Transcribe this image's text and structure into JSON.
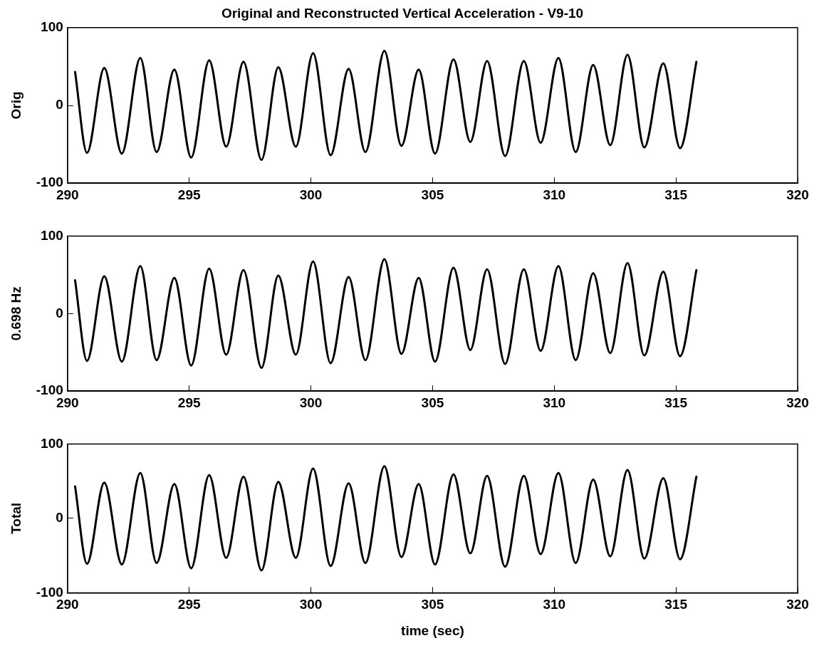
{
  "chart_data": [
    {
      "type": "line",
      "title": "Original and Reconstructed Vertical Acceleration - V9-10",
      "ylabel": "Orig",
      "xlim": [
        290,
        320
      ],
      "xticks": [
        290,
        295,
        300,
        305,
        310,
        315,
        320
      ],
      "ylim": [
        -100,
        100
      ],
      "yticks": [
        -100,
        0,
        100
      ],
      "grid": false,
      "legend": false,
      "marker": "none",
      "line_style": "solid",
      "series": [
        {
          "color": "#000000",
          "x": [
            290.31,
            290.8,
            291.51,
            292.23,
            292.99,
            293.66,
            294.39,
            295.08,
            295.82,
            296.52,
            297.23,
            297.97,
            298.66,
            299.38,
            300.09,
            300.81,
            301.55,
            302.24,
            303.02,
            303.72,
            304.43,
            305.1,
            305.86,
            306.55,
            307.24,
            307.98,
            308.75,
            309.44,
            310.17,
            310.88,
            311.6,
            312.3,
            313.01,
            313.7,
            314.48,
            315.17,
            315.84
          ],
          "values": [
            43,
            -61,
            48,
            -62,
            61,
            -60,
            46,
            -67,
            58,
            -53,
            56,
            -70,
            49,
            -53,
            67,
            -64,
            47,
            -60,
            70,
            -52,
            46,
            -62,
            59,
            -47,
            57,
            -65,
            57,
            -48,
            61,
            -60,
            52,
            -51,
            65,
            -54,
            54,
            -55,
            56
          ]
        }
      ]
    },
    {
      "type": "line",
      "ylabel": "0.698 Hz",
      "xlim": [
        290,
        320
      ],
      "xticks": [
        290,
        295,
        300,
        305,
        310,
        315,
        320
      ],
      "ylim": [
        -100,
        100
      ],
      "yticks": [
        -100,
        0,
        100
      ],
      "grid": false,
      "legend": false,
      "marker": "none",
      "line_style": "solid",
      "series": [
        {
          "color": "#000000",
          "x": [
            290.31,
            290.8,
            291.51,
            292.23,
            292.99,
            293.66,
            294.39,
            295.08,
            295.82,
            296.52,
            297.23,
            297.97,
            298.66,
            299.38,
            300.09,
            300.81,
            301.55,
            302.24,
            303.02,
            303.72,
            304.43,
            305.1,
            305.86,
            306.55,
            307.24,
            307.98,
            308.75,
            309.44,
            310.17,
            310.88,
            311.6,
            312.3,
            313.01,
            313.7,
            314.48,
            315.17,
            315.84
          ],
          "values": [
            43,
            -61,
            48,
            -62,
            61,
            -60,
            46,
            -67,
            58,
            -53,
            56,
            -70,
            49,
            -53,
            67,
            -64,
            47,
            -60,
            70,
            -52,
            46,
            -62,
            59,
            -47,
            57,
            -65,
            57,
            -48,
            61,
            -60,
            52,
            -51,
            65,
            -54,
            54,
            -55,
            56
          ]
        }
      ]
    },
    {
      "type": "line",
      "xlabel": "time (sec)",
      "ylabel": "Total",
      "xlim": [
        290,
        320
      ],
      "xticks": [
        290,
        295,
        300,
        305,
        310,
        315,
        320
      ],
      "ylim": [
        -100,
        100
      ],
      "yticks": [
        -100,
        0,
        100
      ],
      "grid": false,
      "legend": false,
      "marker": "none",
      "line_style": "solid",
      "series": [
        {
          "color": "#000000",
          "x": [
            290.31,
            290.8,
            291.51,
            292.23,
            292.99,
            293.66,
            294.39,
            295.08,
            295.82,
            296.52,
            297.23,
            297.97,
            298.66,
            299.38,
            300.09,
            300.81,
            301.55,
            302.24,
            303.02,
            303.72,
            304.43,
            305.1,
            305.86,
            306.55,
            307.24,
            307.98,
            308.75,
            309.44,
            310.17,
            310.88,
            311.6,
            312.3,
            313.01,
            313.7,
            314.48,
            315.17,
            315.84
          ],
          "values": [
            43,
            -61,
            48,
            -62,
            61,
            -60,
            46,
            -67,
            58,
            -53,
            56,
            -70,
            49,
            -53,
            67,
            -64,
            47,
            -60,
            70,
            -52,
            46,
            -62,
            59,
            -47,
            57,
            -65,
            57,
            -48,
            61,
            -60,
            52,
            -51,
            65,
            -54,
            54,
            -55,
            56
          ]
        }
      ]
    }
  ]
}
